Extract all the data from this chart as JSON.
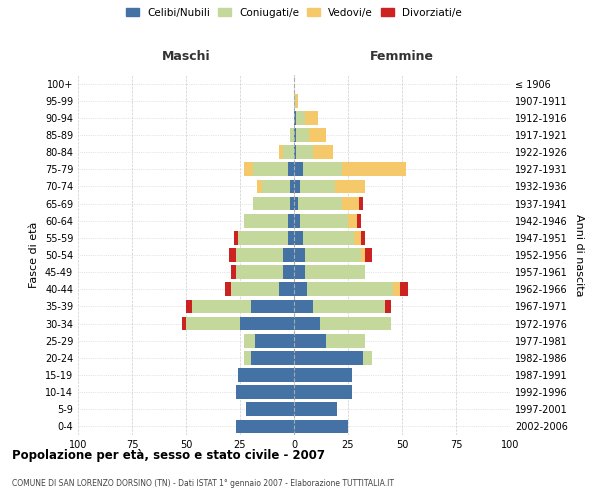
{
  "age_groups": [
    "0-4",
    "5-9",
    "10-14",
    "15-19",
    "20-24",
    "25-29",
    "30-34",
    "35-39",
    "40-44",
    "45-49",
    "50-54",
    "55-59",
    "60-64",
    "65-69",
    "70-74",
    "75-79",
    "80-84",
    "85-89",
    "90-94",
    "95-99",
    "100+"
  ],
  "birth_years": [
    "2002-2006",
    "1997-2001",
    "1992-1996",
    "1987-1991",
    "1982-1986",
    "1977-1981",
    "1972-1976",
    "1967-1971",
    "1962-1966",
    "1957-1961",
    "1952-1956",
    "1947-1951",
    "1942-1946",
    "1937-1941",
    "1932-1936",
    "1927-1931",
    "1922-1926",
    "1917-1921",
    "1912-1916",
    "1907-1911",
    "≤ 1906"
  ],
  "males": {
    "celibe": [
      27,
      22,
      27,
      26,
      20,
      18,
      25,
      20,
      7,
      5,
      5,
      3,
      3,
      2,
      2,
      3,
      0,
      0,
      0,
      0,
      0
    ],
    "coniugato": [
      0,
      0,
      0,
      0,
      3,
      5,
      25,
      27,
      22,
      22,
      22,
      23,
      20,
      17,
      13,
      16,
      5,
      2,
      0,
      0,
      0
    ],
    "vedovo": [
      0,
      0,
      0,
      0,
      0,
      0,
      0,
      0,
      0,
      0,
      0,
      0,
      0,
      0,
      2,
      4,
      2,
      0,
      0,
      0,
      0
    ],
    "divorziato": [
      0,
      0,
      0,
      0,
      0,
      0,
      2,
      3,
      3,
      2,
      3,
      2,
      0,
      0,
      0,
      0,
      0,
      0,
      0,
      0,
      0
    ]
  },
  "females": {
    "nubile": [
      25,
      20,
      27,
      27,
      32,
      15,
      12,
      9,
      6,
      5,
      5,
      4,
      3,
      2,
      3,
      4,
      1,
      1,
      1,
      0,
      0
    ],
    "coniugata": [
      0,
      0,
      0,
      0,
      4,
      18,
      33,
      33,
      40,
      28,
      26,
      24,
      22,
      20,
      16,
      18,
      8,
      6,
      4,
      1,
      0
    ],
    "vedova": [
      0,
      0,
      0,
      0,
      0,
      0,
      0,
      0,
      3,
      0,
      2,
      3,
      4,
      8,
      14,
      30,
      9,
      8,
      6,
      1,
      0
    ],
    "divorziata": [
      0,
      0,
      0,
      0,
      0,
      0,
      0,
      3,
      4,
      0,
      3,
      2,
      2,
      2,
      0,
      0,
      0,
      0,
      0,
      0,
      0
    ]
  },
  "color_celibe": "#4472a4",
  "color_coniugato": "#c5d89b",
  "color_vedovo": "#f5c96a",
  "color_divorziato": "#cc2222",
  "xlim": 100,
  "title": "Popolazione per età, sesso e stato civile - 2007",
  "subtitle": "COMUNE DI SAN LORENZO DORSINO (TN) - Dati ISTAT 1° gennaio 2007 - Elaborazione TUTTITALIA.IT",
  "ylabel_left": "Fasce di età",
  "ylabel_right": "Anni di nascita",
  "xlabel_maschi": "Maschi",
  "xlabel_femmine": "Femmine",
  "legend_labels": [
    "Celibi/Nubili",
    "Coniugati/e",
    "Vedovi/e",
    "Divorziati/e"
  ],
  "bg_color": "#ffffff",
  "grid_color": "#cccccc"
}
